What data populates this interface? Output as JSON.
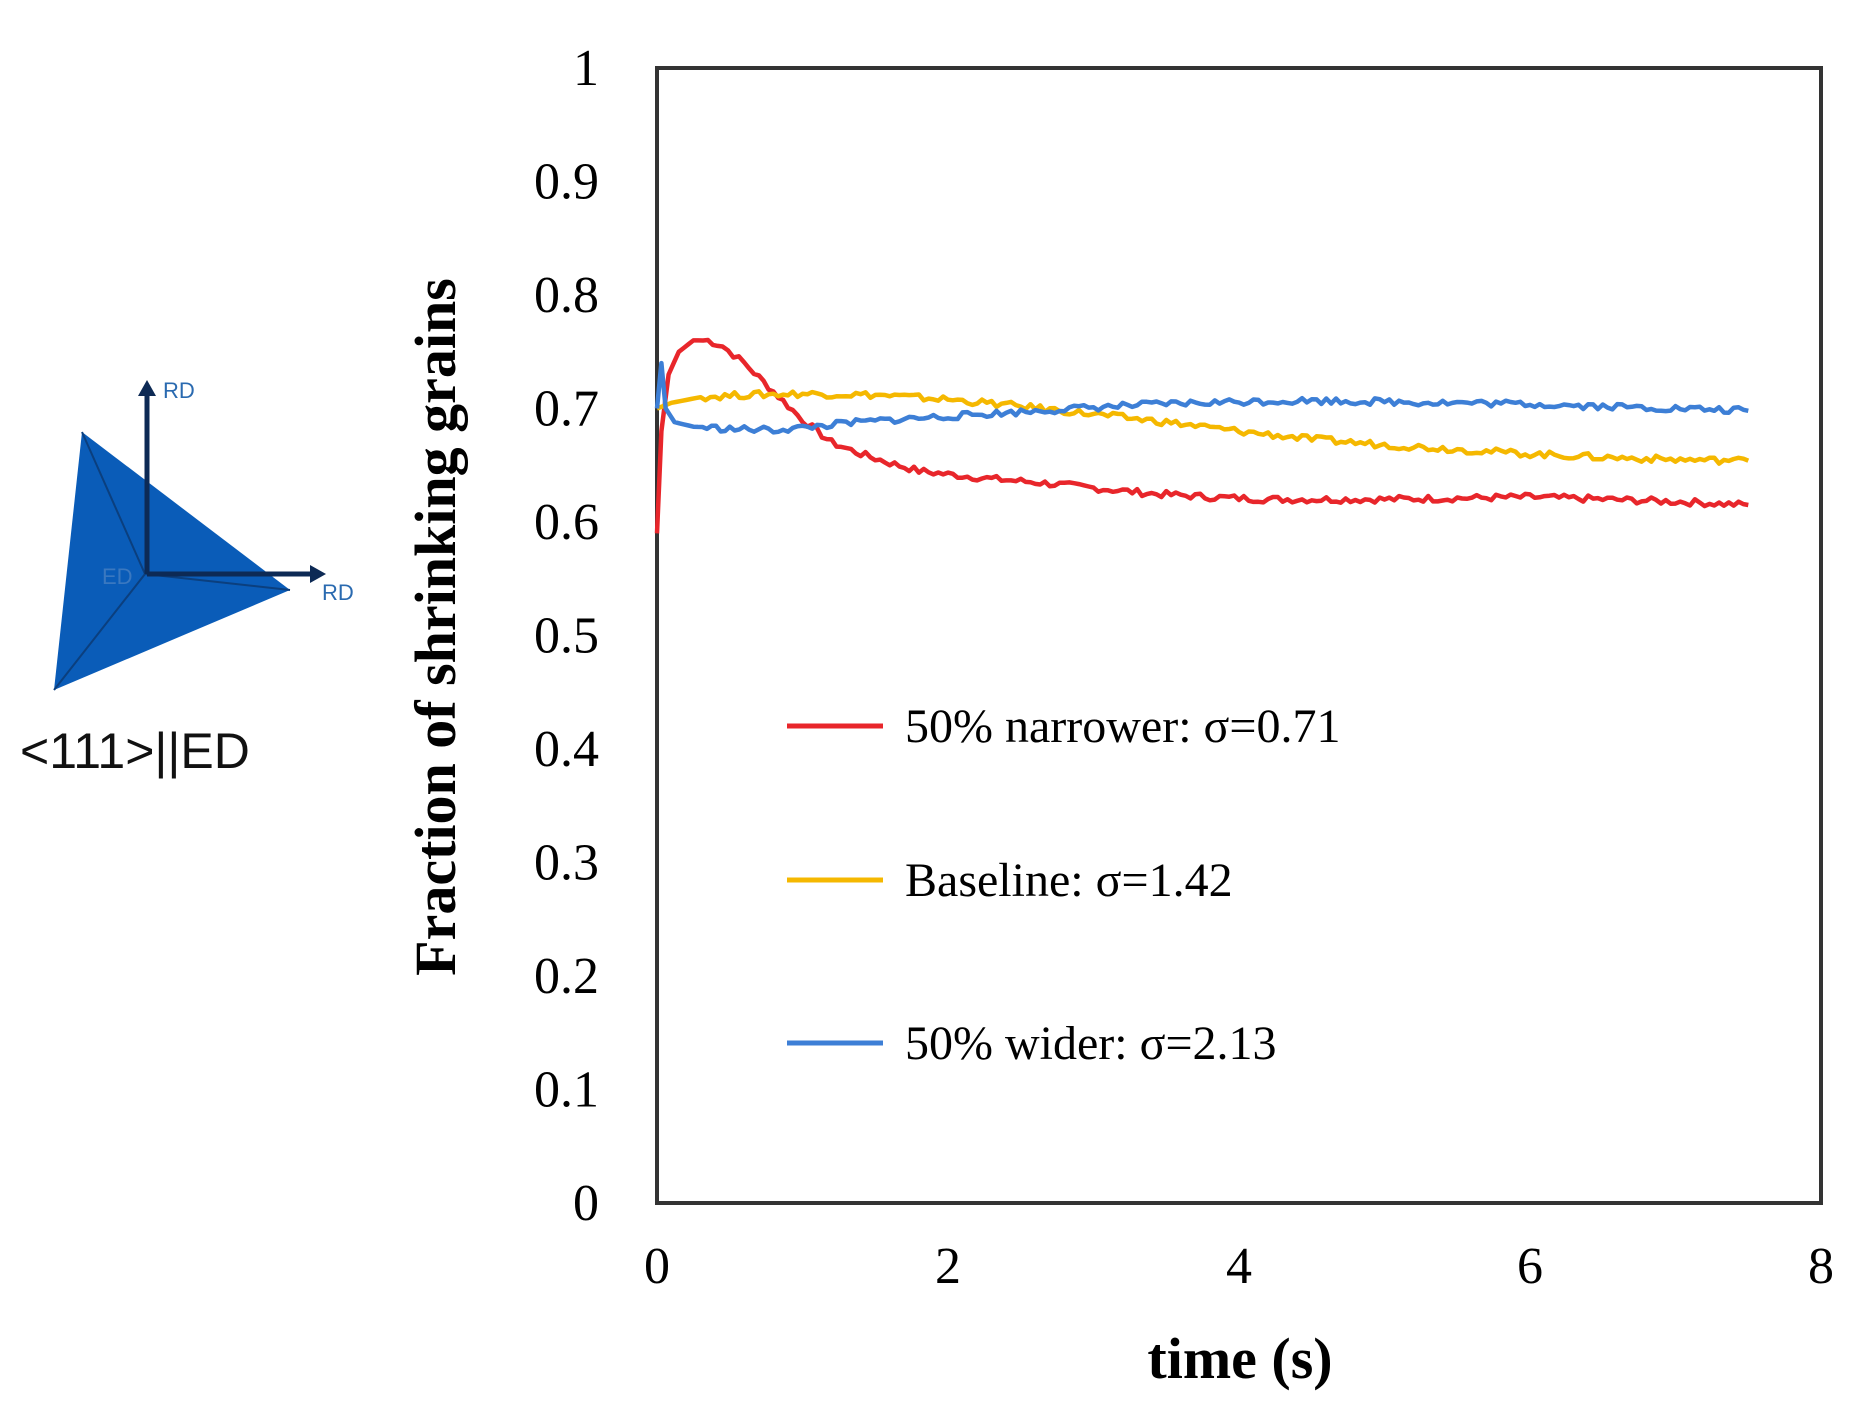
{
  "chart_data": {
    "type": "line",
    "title": "",
    "xlabel": "time (s)",
    "ylabel": "Fraction of shrinking grains",
    "xlim": [
      0,
      8
    ],
    "ylim": [
      0,
      1
    ],
    "xticks": [
      "0",
      "2",
      "4",
      "6",
      "8"
    ],
    "yticks": [
      "0",
      "0.1",
      "0.2",
      "0.3",
      "0.4",
      "0.5",
      "0.6",
      "0.7",
      "0.8",
      "0.9",
      "1"
    ],
    "legend_position": "center-left",
    "grid": false,
    "series": [
      {
        "name": "50% narrower: σ=0.71",
        "color": "#e8262b",
        "x": [
          0,
          0.03,
          0.08,
          0.15,
          0.25,
          0.35,
          0.45,
          0.6,
          0.8,
          1.0,
          1.2,
          1.4,
          1.6,
          1.8,
          2.0,
          2.3,
          2.6,
          3.0,
          3.4,
          3.8,
          4.2,
          4.6,
          5.0,
          5.5,
          6.0,
          6.5,
          7.0,
          7.5
        ],
        "y": [
          0.59,
          0.68,
          0.73,
          0.75,
          0.76,
          0.76,
          0.755,
          0.74,
          0.715,
          0.69,
          0.67,
          0.66,
          0.652,
          0.645,
          0.642,
          0.638,
          0.635,
          0.63,
          0.625,
          0.622,
          0.62,
          0.62,
          0.62,
          0.621,
          0.622,
          0.62,
          0.618,
          0.615
        ]
      },
      {
        "name": "Baseline: σ=1.42",
        "color": "#f5b800",
        "x": [
          0,
          0.1,
          0.3,
          0.6,
          1.0,
          1.5,
          2.0,
          2.5,
          3.0,
          3.5,
          4.0,
          4.5,
          5.0,
          5.5,
          6.0,
          6.5,
          7.0,
          7.5
        ],
        "y": [
          0.7,
          0.705,
          0.71,
          0.712,
          0.713,
          0.712,
          0.708,
          0.702,
          0.695,
          0.688,
          0.68,
          0.673,
          0.668,
          0.664,
          0.66,
          0.657,
          0.655,
          0.654
        ]
      },
      {
        "name": "50% wider: σ=2.13",
        "color": "#3d7fd6",
        "x": [
          0,
          0.03,
          0.06,
          0.12,
          0.25,
          0.5,
          0.8,
          1.0,
          1.3,
          1.6,
          2.0,
          2.5,
          3.0,
          3.5,
          4.0,
          4.5,
          5.0,
          5.5,
          6.0,
          6.5,
          7.0,
          7.5
        ],
        "y": [
          0.7,
          0.74,
          0.7,
          0.688,
          0.684,
          0.682,
          0.681,
          0.683,
          0.687,
          0.69,
          0.693,
          0.697,
          0.701,
          0.704,
          0.706,
          0.707,
          0.706,
          0.705,
          0.704,
          0.702,
          0.7,
          0.698
        ]
      }
    ]
  },
  "inset": {
    "caption": "<111>||ED",
    "axis_top_label": "RD",
    "axis_right_label": "RD",
    "center_label": "ED",
    "fill_color": "#0a5cb8",
    "arrow_color": "#0d2a55"
  }
}
